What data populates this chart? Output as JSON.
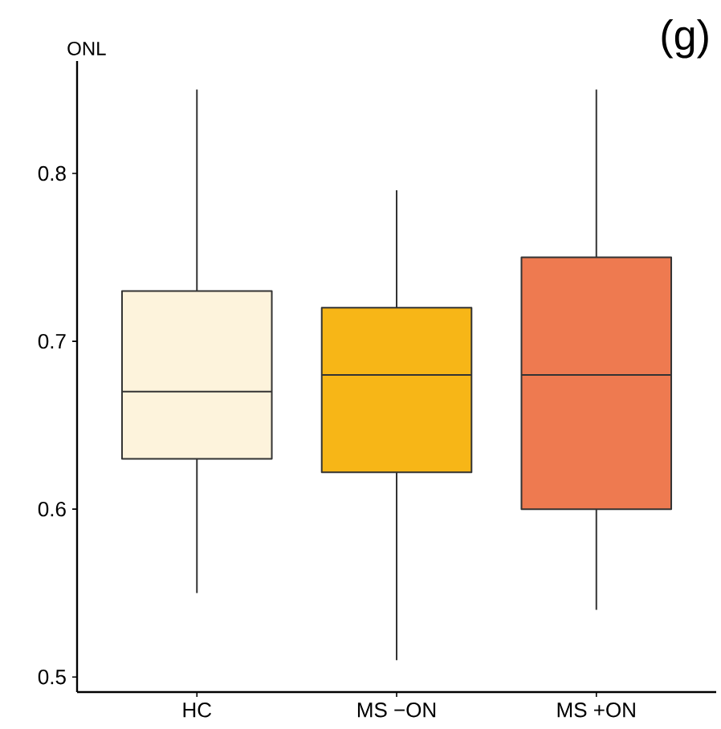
{
  "chart_data": {
    "type": "box",
    "title": "(g)",
    "ylabel": "ONL",
    "categories": [
      "HC",
      "MS −ON",
      "MS +ON"
    ],
    "colors": [
      "#fdf3dc",
      "#f7b617",
      "#ee7a50"
    ],
    "boxes": [
      {
        "low": 0.55,
        "q1": 0.63,
        "median": 0.67,
        "q3": 0.73,
        "high": 0.85
      },
      {
        "low": 0.51,
        "q1": 0.622,
        "median": 0.68,
        "q3": 0.72,
        "high": 0.79
      },
      {
        "low": 0.54,
        "q1": 0.6,
        "median": 0.68,
        "q3": 0.75,
        "high": 0.85
      }
    ],
    "ylim": [
      0.491,
      0.867
    ],
    "yticks": [
      0.5,
      0.6,
      0.7,
      0.8
    ]
  }
}
